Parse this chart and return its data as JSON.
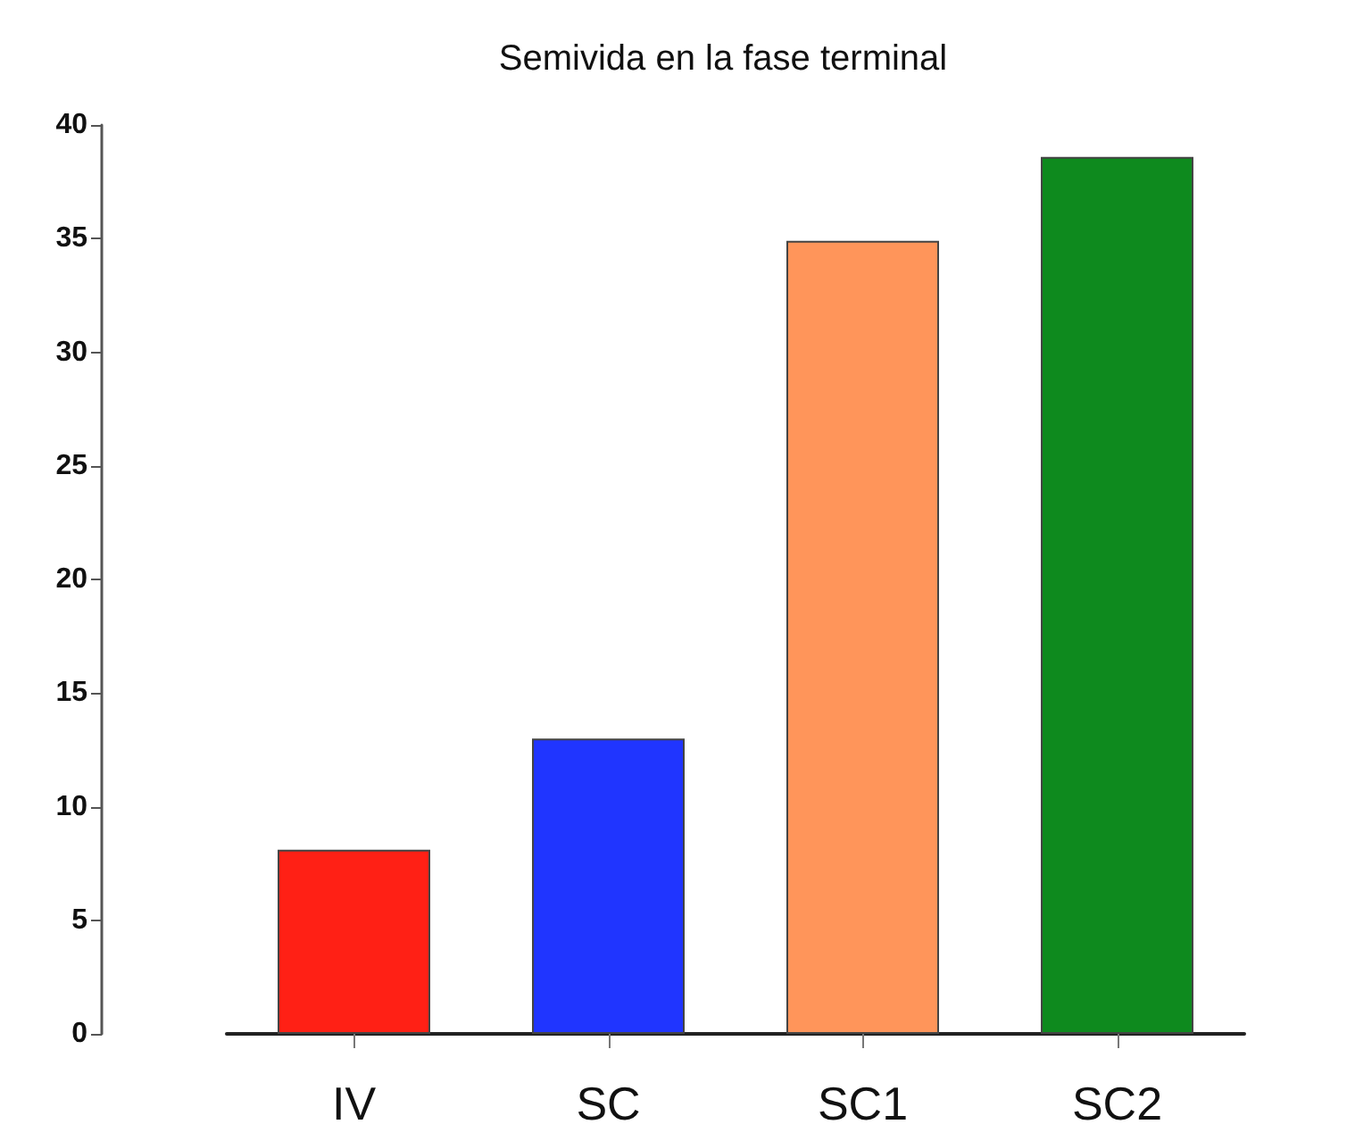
{
  "chart_data": {
    "type": "bar",
    "title": "Semivida en la fase terminal",
    "categories": [
      "IV",
      "SC",
      "SC1",
      "SC2"
    ],
    "values": [
      8.1,
      13.0,
      34.9,
      38.6
    ],
    "colors": [
      "#ff2015",
      "#2035ff",
      "#ff955a",
      "#0e8a1e"
    ],
    "ylim": [
      0,
      40
    ],
    "yticks": [
      0,
      5,
      10,
      15,
      20,
      25,
      30,
      35,
      40
    ],
    "grid": false
  }
}
